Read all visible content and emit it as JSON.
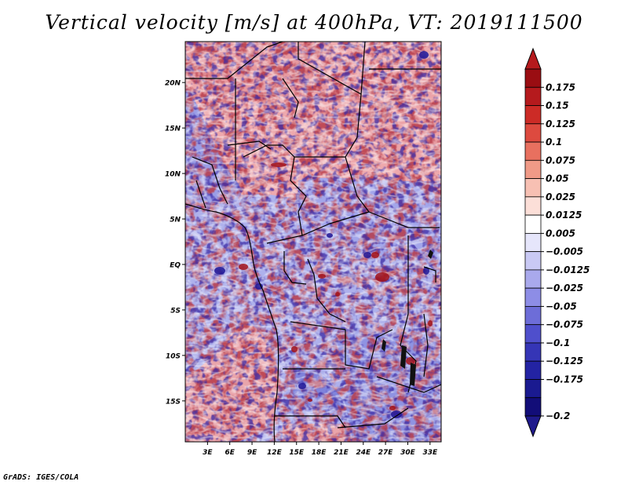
{
  "title": "Vertical velocity [m/s] at 400hPa, VT: 2019111500",
  "footer": "GrADS: IGES/COLA",
  "map": {
    "region": "Central Africa",
    "lat_labels": [
      "20N",
      "15N",
      "10N",
      "5N",
      "EQ",
      "5S",
      "10S",
      "15S"
    ],
    "lat_values": [
      20,
      15,
      10,
      5,
      0,
      -5,
      -10,
      -15
    ],
    "lon_labels": [
      "3E",
      "6E",
      "9E",
      "12E",
      "15E",
      "18E",
      "21E",
      "24E",
      "27E",
      "30E",
      "33E"
    ],
    "lon_values": [
      3,
      6,
      9,
      12,
      15,
      18,
      21,
      24,
      27,
      30,
      33
    ],
    "lon_range": [
      0,
      34.5
    ],
    "lat_range": [
      -19.5,
      24.5
    ]
  },
  "colorbar": {
    "labels": [
      "0.175",
      "0.15",
      "0.125",
      "0.1",
      "0.075",
      "0.05",
      "0.025",
      "0.0125",
      "0.005",
      "−0.005",
      "−0.0125",
      "−0.025",
      "−0.05",
      "−0.075",
      "−0.1",
      "−0.125",
      "−0.175",
      "−0.2"
    ],
    "colors": [
      "#9a0d12",
      "#b51a1d",
      "#cc2b26",
      "#dd4a3f",
      "#e8705f",
      "#f09a87",
      "#f7c0b3",
      "#fcdfd8",
      "#ffffff",
      "#e6e6fb",
      "#c9c9f4",
      "#a9a9ec",
      "#8d8de6",
      "#6d6dd8",
      "#4f4fcc",
      "#3535b6",
      "#2323a3",
      "#1a1a90",
      "#120d78"
    ],
    "top_color": "#b51a1d",
    "bottom_color": "#1f1a8c"
  }
}
